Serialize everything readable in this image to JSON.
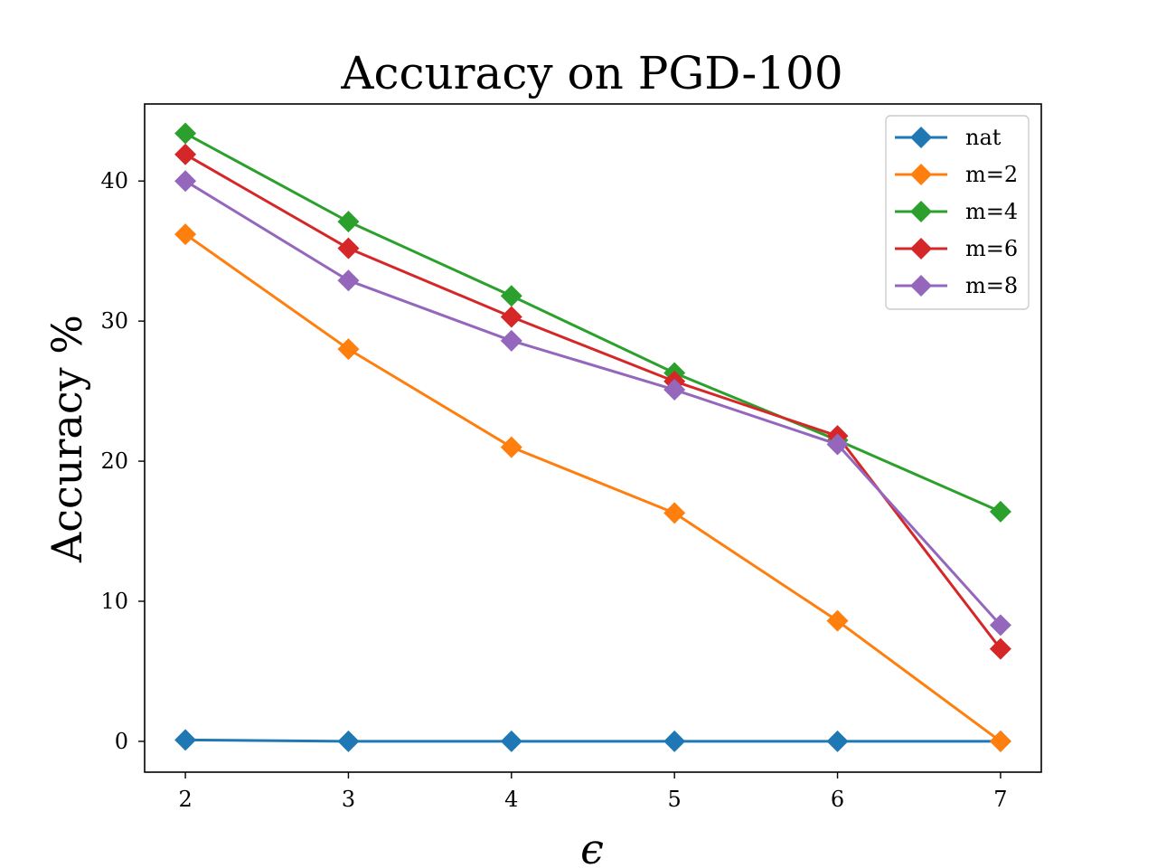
{
  "chart_data": {
    "type": "line",
    "title": "Accuracy on PGD-100",
    "xlabel": "ϵ",
    "ylabel": "Accuracy %",
    "x": [
      2,
      3,
      4,
      5,
      6,
      7
    ],
    "xlim": [
      1.75,
      7.25
    ],
    "ylim": [
      -2.2,
      45.5
    ],
    "xticks": [
      2,
      3,
      4,
      5,
      6,
      7
    ],
    "yticks": [
      0,
      10,
      20,
      30,
      40
    ],
    "grid": false,
    "legend_position": "top-right",
    "marker": "diamond",
    "series": [
      {
        "name": "nat",
        "color": "#1f77b4",
        "values": [
          0.1,
          0.0,
          0.0,
          0.0,
          0.0,
          0.0
        ]
      },
      {
        "name": "m=2",
        "color": "#ff7f0e",
        "values": [
          36.2,
          28.0,
          21.0,
          16.3,
          8.6,
          0.0
        ]
      },
      {
        "name": "m=4",
        "color": "#2ca02c",
        "values": [
          43.4,
          37.1,
          31.8,
          26.3,
          21.5,
          16.4
        ]
      },
      {
        "name": "m=6",
        "color": "#d62728",
        "values": [
          41.9,
          35.2,
          30.3,
          25.7,
          21.8,
          6.6
        ]
      },
      {
        "name": "m=8",
        "color": "#9467bd",
        "values": [
          40.0,
          32.9,
          28.6,
          25.1,
          21.2,
          8.3
        ]
      }
    ]
  }
}
